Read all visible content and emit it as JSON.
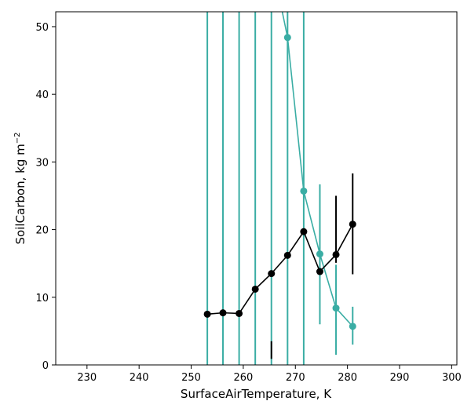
{
  "chart_data": {
    "type": "line",
    "title": "",
    "xlabel": "SurfaceAirTemperature,  K",
    "ylabel_main": "SoilCarbon,  kg m",
    "ylabel_sup": "−2",
    "xlim": [
      224,
      301
    ],
    "ylim": [
      0,
      52.2
    ],
    "x_ticks": [
      230,
      240,
      250,
      260,
      270,
      280,
      290,
      300
    ],
    "y_ticks": [
      0,
      10,
      20,
      30,
      40,
      50
    ],
    "grid": false,
    "legend": "none",
    "series": [
      {
        "color": "#000000",
        "x": [
          253.1,
          256.1,
          259.2,
          262.3,
          265.4,
          268.5,
          271.6,
          274.7,
          277.8,
          281.0
        ],
        "y": [
          7.5,
          7.7,
          7.6,
          11.2,
          13.5,
          16.2,
          19.7,
          13.8,
          16.3,
          20.8
        ],
        "err_low": [
          null,
          null,
          null,
          null,
          0.9,
          null,
          null,
          null,
          15.1,
          13.4
        ],
        "err_high": [
          null,
          null,
          null,
          null,
          3.5,
          null,
          null,
          null,
          25.0,
          28.3
        ]
      },
      {
        "color": "#3aada4",
        "x": [
          253.1,
          256.1,
          259.2,
          262.3,
          265.4,
          268.5,
          271.6,
          274.7,
          277.8,
          281.0
        ],
        "y": [
          null,
          null,
          null,
          null,
          60.0,
          48.4,
          25.7,
          16.4,
          8.4,
          5.7
        ],
        "err_low": [
          0,
          0,
          0,
          0,
          0,
          0,
          0,
          6.0,
          1.5,
          3.0
        ],
        "err_high": [
          52.2,
          52.2,
          52.2,
          52.2,
          52.2,
          52.2,
          52.2,
          26.7,
          14.8,
          8.6
        ],
        "line_to_top_x": 267.2
      }
    ]
  }
}
